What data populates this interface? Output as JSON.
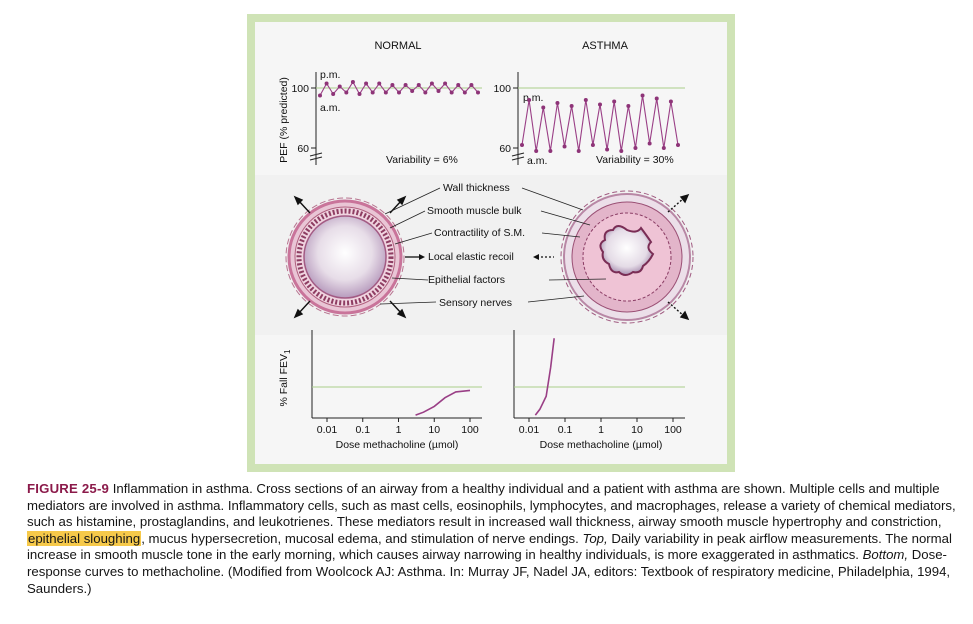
{
  "figure": {
    "headings": {
      "normal": "NORMAL",
      "asthma": "ASTHMA"
    },
    "pef_chart": {
      "ylabel": "PEF (% predicted)",
      "tick_100": "100",
      "tick_60": "60",
      "normal": {
        "pm_label": "p.m.",
        "am_label": "a.m.",
        "variability": "Variability = 6%"
      },
      "asthma": {
        "pm_label": "p.m.",
        "am_label": "a.m.",
        "variability": "Variability = 30%"
      }
    },
    "airway_labels": [
      "Wall thickness",
      "Smooth muscle bulk",
      "Contractility of S.M.",
      "Local elastic recoil",
      "Epithelial factors",
      "Sensory nerves"
    ],
    "dose_chart": {
      "ylabel": "% Fall FEV",
      "ylabel_sub": "1",
      "xticks": [
        "0.01",
        "0.1",
        "1",
        "10",
        "100"
      ],
      "xlabel": "Dose methacholine (µmol)"
    }
  },
  "caption": {
    "figure_number": "FIGURE 25-9",
    "text_before_highlight": "Inflammation in asthma. Cross sections of an airway from a healthy individual and a patient with asthma are shown. Multiple cells and multiple mediators are involved in asthma. Inflammatory cells, such as mast cells, eosinophils, lymphocytes, and macrophages, release a variety of chemical mediators, such as histamine, prostaglandins, and leukotrienes. These mediators result in increased wall thickness, airway smooth muscle hypertrophy and constriction,",
    "highlight": "epithelial sloughing",
    "text_after_highlight": ", mucus hypersecretion, mucosal edema, and stimulation of nerve endings.",
    "top_label": "Top,",
    "top_text": "Daily variability in peak airflow measurements. The normal increase in smooth muscle tone in the early morning, which causes airway narrowing in healthy individuals, is more exaggerated in asthmatics.",
    "bottom_label": "Bottom,",
    "bottom_text": "Dose-response curves to methacholine. (Modified from Woolcock AJ: Asthma. In: Murray JF, Nadel JA, editors: Textbook of respiratory medicine, Philadelphia, 1994, Saunders.)"
  },
  "chart_data": [
    {
      "type": "line",
      "panel": "NORMAL",
      "ylabel": "PEF (% predicted)",
      "ylim": [
        60,
        110
      ],
      "yticks": [
        60,
        100
      ],
      "series": [
        {
          "values": [
            95,
            103,
            96,
            101,
            97,
            104,
            96,
            103,
            97,
            103,
            97,
            102,
            97,
            102,
            98,
            102,
            97,
            103,
            98,
            103,
            97,
            102,
            97,
            102,
            97
          ]
        }
      ],
      "annotations": [
        "p.m.",
        "a.m.",
        "Variability = 6%"
      ]
    },
    {
      "type": "line",
      "panel": "ASTHMA",
      "ylabel": "PEF (% predicted)",
      "ylim": [
        60,
        110
      ],
      "yticks": [
        60,
        100
      ],
      "series": [
        {
          "values": [
            62,
            92,
            58,
            87,
            58,
            90,
            61,
            88,
            58,
            92,
            62,
            89,
            59,
            91,
            58,
            88,
            60,
            95,
            63,
            93,
            60,
            91,
            62
          ]
        }
      ],
      "annotations": [
        "p.m.",
        "a.m.",
        "Variability = 30%"
      ]
    },
    {
      "type": "line",
      "panel": "NORMAL",
      "ylabel": "% Fall FEV1",
      "xlabel": "Dose methacholine (µmol)",
      "xscale": "log",
      "xticks": [
        0.01,
        0.1,
        1,
        10,
        100
      ],
      "series": [
        {
          "x": [
            3,
            5,
            10,
            20,
            40,
            100
          ],
          "y": [
            2,
            4,
            8,
            14,
            18,
            19
          ]
        }
      ]
    },
    {
      "type": "line",
      "panel": "ASTHMA",
      "ylabel": "% Fall FEV1",
      "xlabel": "Dose methacholine (µmol)",
      "xscale": "log",
      "xticks": [
        0.01,
        0.1,
        1,
        10,
        100
      ],
      "series": [
        {
          "x": [
            0.015,
            0.02,
            0.03,
            0.04,
            0.05
          ],
          "y": [
            2,
            6,
            15,
            35,
            55
          ]
        }
      ]
    }
  ]
}
